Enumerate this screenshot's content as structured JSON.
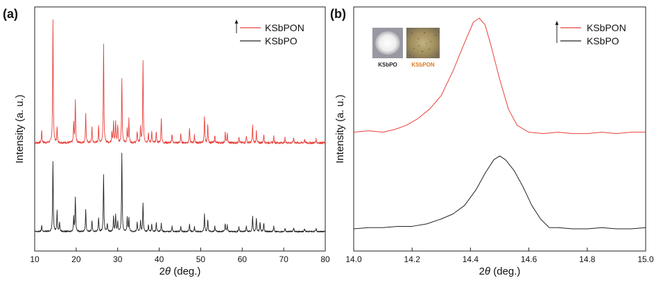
{
  "chart_data": [
    {
      "type": "line",
      "panel_label": "(a)",
      "xlabel_italic": "θ",
      "xlabel_prefix": "2",
      "xlabel_suffix": " (deg.)",
      "ylabel": "Intensity (a. u.)",
      "xlim": [
        10,
        80
      ],
      "xticks": [
        10,
        20,
        30,
        40,
        50,
        60,
        70,
        80
      ],
      "grid": false,
      "legend_position": "top-right",
      "series": [
        {
          "name": "KSbPON",
          "color": "#e8403a",
          "peaks": [
            [
              11.7,
              0.1
            ],
            [
              14.4,
              1.0
            ],
            [
              15.4,
              0.12
            ],
            [
              19.4,
              0.16
            ],
            [
              19.8,
              0.34
            ],
            [
              22.3,
              0.24
            ],
            [
              23.8,
              0.12
            ],
            [
              25.4,
              0.13
            ],
            [
              26.6,
              0.8
            ],
            [
              28.6,
              0.09
            ],
            [
              29.0,
              0.16
            ],
            [
              29.5,
              0.17
            ],
            [
              30.0,
              0.14
            ],
            [
              31.0,
              0.51
            ],
            [
              32.3,
              0.11
            ],
            [
              32.7,
              0.19
            ],
            [
              34.7,
              0.09
            ],
            [
              35.5,
              0.12
            ],
            [
              36.1,
              0.66
            ],
            [
              37.4,
              0.08
            ],
            [
              38.2,
              0.09
            ],
            [
              39.3,
              0.09
            ],
            [
              40.5,
              0.2
            ],
            [
              43.1,
              0.07
            ],
            [
              45.2,
              0.07
            ],
            [
              47.3,
              0.12
            ],
            [
              48.5,
              0.06
            ],
            [
              50.9,
              0.21
            ],
            [
              51.7,
              0.14
            ],
            [
              53.4,
              0.06
            ],
            [
              55.9,
              0.08
            ],
            [
              56.4,
              0.07
            ],
            [
              59.2,
              0.05
            ],
            [
              61.0,
              0.06
            ],
            [
              62.5,
              0.14
            ],
            [
              63.4,
              0.09
            ],
            [
              65.2,
              0.07
            ],
            [
              67.6,
              0.05
            ],
            [
              70.3,
              0.04
            ],
            [
              72.4,
              0.04
            ],
            [
              75.0,
              0.03
            ],
            [
              77.8,
              0.03
            ]
          ]
        },
        {
          "name": "KSbPO",
          "color": "#222222",
          "peaks": [
            [
              11.7,
              0.08
            ],
            [
              14.4,
              0.9
            ],
            [
              15.4,
              0.26
            ],
            [
              16.0,
              0.12
            ],
            [
              19.4,
              0.18
            ],
            [
              19.8,
              0.44
            ],
            [
              22.3,
              0.28
            ],
            [
              23.8,
              0.13
            ],
            [
              25.4,
              0.18
            ],
            [
              26.6,
              0.73
            ],
            [
              27.5,
              0.1
            ],
            [
              29.0,
              0.19
            ],
            [
              29.5,
              0.21
            ],
            [
              30.0,
              0.13
            ],
            [
              31.0,
              1.0
            ],
            [
              32.3,
              0.18
            ],
            [
              32.7,
              0.17
            ],
            [
              34.7,
              0.12
            ],
            [
              35.5,
              0.14
            ],
            [
              36.1,
              0.36
            ],
            [
              37.4,
              0.08
            ],
            [
              38.2,
              0.09
            ],
            [
              39.3,
              0.11
            ],
            [
              40.5,
              0.1
            ],
            [
              43.1,
              0.07
            ],
            [
              45.2,
              0.07
            ],
            [
              47.3,
              0.1
            ],
            [
              48.5,
              0.06
            ],
            [
              50.9,
              0.22
            ],
            [
              51.7,
              0.15
            ],
            [
              53.4,
              0.07
            ],
            [
              55.9,
              0.1
            ],
            [
              56.4,
              0.08
            ],
            [
              59.2,
              0.06
            ],
            [
              61.0,
              0.07
            ],
            [
              62.5,
              0.2
            ],
            [
              63.4,
              0.17
            ],
            [
              64.3,
              0.12
            ],
            [
              65.2,
              0.11
            ],
            [
              67.6,
              0.07
            ],
            [
              70.3,
              0.05
            ],
            [
              72.4,
              0.05
            ],
            [
              75.0,
              0.04
            ],
            [
              77.8,
              0.04
            ]
          ]
        }
      ]
    },
    {
      "type": "line",
      "panel_label": "(b)",
      "xlabel_italic": "θ",
      "xlabel_prefix": "2",
      "xlabel_suffix": " (deg.)",
      "ylabel": "Intensity (a. u.)",
      "xlim": [
        14.0,
        15.0
      ],
      "xticks": [
        "14.0",
        "14.2",
        "14.4",
        "14.6",
        "14.8",
        "15.0"
      ],
      "grid": false,
      "legend_position": "top-right",
      "inset_labels": [
        "KSbPO",
        "KSbPON"
      ],
      "series": [
        {
          "name": "KSbPON",
          "color": "#e8403a",
          "x": [
            14.0,
            14.05,
            14.1,
            14.14,
            14.18,
            14.22,
            14.26,
            14.3,
            14.34,
            14.38,
            14.41,
            14.43,
            14.45,
            14.47,
            14.5,
            14.53,
            14.56,
            14.6,
            14.65,
            14.7,
            14.75,
            14.8,
            14.85,
            14.9,
            14.95,
            15.0
          ],
          "y": [
            0.16,
            0.17,
            0.16,
            0.18,
            0.21,
            0.26,
            0.33,
            0.43,
            0.61,
            0.82,
            0.97,
            1.0,
            0.95,
            0.8,
            0.55,
            0.33,
            0.21,
            0.16,
            0.15,
            0.16,
            0.15,
            0.15,
            0.16,
            0.15,
            0.16,
            0.16
          ]
        },
        {
          "name": "KSbPO",
          "color": "#222222",
          "x": [
            14.0,
            14.05,
            14.1,
            14.15,
            14.2,
            14.25,
            14.3,
            14.34,
            14.38,
            14.42,
            14.45,
            14.48,
            14.5,
            14.52,
            14.55,
            14.58,
            14.61,
            14.64,
            14.67,
            14.7,
            14.75,
            14.8,
            14.85,
            14.9,
            14.95,
            15.0
          ],
          "y": [
            0.0,
            0.01,
            0.01,
            0.02,
            0.02,
            0.04,
            0.08,
            0.12,
            0.19,
            0.32,
            0.45,
            0.56,
            0.59,
            0.56,
            0.47,
            0.34,
            0.19,
            0.08,
            0.01,
            0.01,
            0.0,
            0.0,
            0.01,
            0.0,
            0.0,
            0.01
          ]
        }
      ]
    }
  ]
}
